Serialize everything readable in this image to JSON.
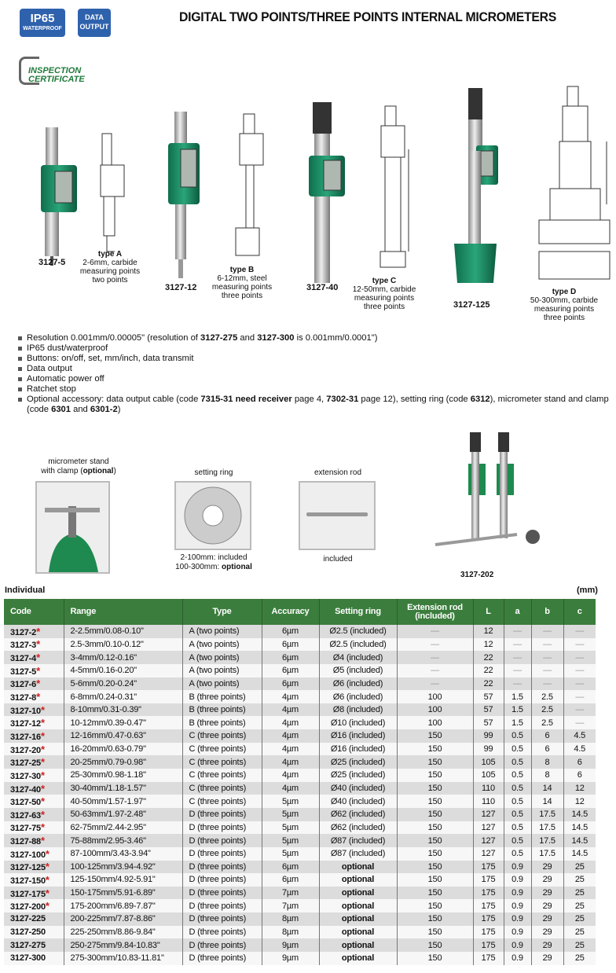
{
  "badges": {
    "ip65": "IP65",
    "ip65_sub": "WATERPROOF",
    "data1": "DATA",
    "data2": "OUTPUT"
  },
  "title": "DIGITAL TWO POINTS/THREE POINTS INTERNAL MICROMETERS",
  "certificate": {
    "line1": "INSPECTION",
    "line2": "CERTIFICATE"
  },
  "products": [
    {
      "code": "3127-5"
    },
    {
      "code": "3127-12"
    },
    {
      "code": "3127-40"
    },
    {
      "code": "3127-125"
    }
  ],
  "types": [
    {
      "name": "type A",
      "lines": [
        "2-6mm, carbide",
        "measuring points",
        "two points"
      ]
    },
    {
      "name": "type B",
      "lines": [
        "6-12mm, steel",
        "measuring points",
        "three points"
      ]
    },
    {
      "name": "type C",
      "lines": [
        "12-50mm, carbide",
        "measuring points",
        "three points"
      ]
    },
    {
      "name": "type D",
      "lines": [
        "50-300mm, carbide",
        "measuring points",
        "three points"
      ]
    }
  ],
  "features": [
    [
      {
        "t": "Resolution 0.001mm/0.00005\" (resolution of "
      },
      {
        "t": "3127-275",
        "b": true
      },
      {
        "t": " and "
      },
      {
        "t": "3127-300",
        "b": true
      },
      {
        "t": " is 0.001mm/0.0001\")"
      }
    ],
    [
      {
        "t": "IP65 dust/waterproof"
      }
    ],
    [
      {
        "t": "Buttons: on/off, set, mm/inch, data transmit"
      }
    ],
    [
      {
        "t": "Data output"
      }
    ],
    [
      {
        "t": "Automatic power off"
      }
    ],
    [
      {
        "t": "Ratchet stop"
      }
    ],
    [
      {
        "t": "Optional accessory: data output cable (code "
      },
      {
        "t": "7315-31 need receiver",
        "b": true
      },
      {
        "t": " page 4, "
      },
      {
        "t": "7302-31",
        "b": true
      },
      {
        "t": " page 12), setting ring (code "
      },
      {
        "t": "6312",
        "b": true
      },
      {
        "t": "), micrometer stand and clamp (code "
      },
      {
        "t": "6301",
        "b": true
      },
      {
        "t": " and "
      },
      {
        "t": "6301-2",
        "b": true
      },
      {
        "t": ")"
      }
    ]
  ],
  "accessories": {
    "stand": {
      "title1": "micrometer stand",
      "title2": "with clamp (",
      "title_bold": "optional",
      "title3": ")"
    },
    "ring": {
      "title": "setting ring",
      "note1": "2-100mm: included",
      "note2a": "100-300mm: ",
      "note2b": "optional"
    },
    "rod": {
      "title": "extension rod",
      "note": "included"
    },
    "set_code": "3127-202"
  },
  "table": {
    "label": "Individual",
    "unit": "(mm)",
    "headers": [
      "Code",
      "Range",
      "Type",
      "Accuracy",
      "Setting ring",
      "Extension rod (included)",
      "L",
      "a",
      "b",
      "c"
    ],
    "rows": [
      [
        "3127-2",
        true,
        "2-2.5mm/0.08-0.10\"",
        "A (two points)",
        "6µm",
        "Ø2.5 (included)",
        "—",
        "12",
        "—",
        "—",
        "—"
      ],
      [
        "3127-3",
        true,
        "2.5-3mm/0.10-0.12\"",
        "A (two points)",
        "6µm",
        "Ø2.5 (included)",
        "—",
        "12",
        "—",
        "—",
        "—"
      ],
      [
        "3127-4",
        true,
        "3-4mm/0.12-0.16\"",
        "A (two points)",
        "6µm",
        "Ø4 (included)",
        "—",
        "22",
        "—",
        "—",
        "—"
      ],
      [
        "3127-5",
        true,
        "4-5mm/0.16-0.20\"",
        "A (two points)",
        "6µm",
        "Ø5 (included)",
        "—",
        "22",
        "—",
        "—",
        "—"
      ],
      [
        "3127-6",
        true,
        "5-6mm/0.20-0.24\"",
        "A (two points)",
        "6µm",
        "Ø6 (included)",
        "—",
        "22",
        "—",
        "—",
        "—"
      ],
      [
        "3127-8",
        true,
        "6-8mm/0.24-0.31\"",
        "B (three points)",
        "4µm",
        "Ø6 (included)",
        "100",
        "57",
        "1.5",
        "2.5",
        "—"
      ],
      [
        "3127-10",
        true,
        "8-10mm/0.31-0.39\"",
        "B (three points)",
        "4µm",
        "Ø8 (included)",
        "100",
        "57",
        "1.5",
        "2.5",
        "—"
      ],
      [
        "3127-12",
        true,
        "10-12mm/0.39-0.47\"",
        "B (three points)",
        "4µm",
        "Ø10 (included)",
        "100",
        "57",
        "1.5",
        "2.5",
        "—"
      ],
      [
        "3127-16",
        true,
        "12-16mm/0.47-0.63\"",
        "C (three points)",
        "4µm",
        "Ø16 (included)",
        "150",
        "99",
        "0.5",
        "6",
        "4.5"
      ],
      [
        "3127-20",
        true,
        "16-20mm/0.63-0.79\"",
        "C (three points)",
        "4µm",
        "Ø16 (included)",
        "150",
        "99",
        "0.5",
        "6",
        "4.5"
      ],
      [
        "3127-25",
        true,
        "20-25mm/0.79-0.98\"",
        "C (three points)",
        "4µm",
        "Ø25 (included)",
        "150",
        "105",
        "0.5",
        "8",
        "6"
      ],
      [
        "3127-30",
        true,
        "25-30mm/0.98-1.18\"",
        "C (three points)",
        "4µm",
        "Ø25 (included)",
        "150",
        "105",
        "0.5",
        "8",
        "6"
      ],
      [
        "3127-40",
        true,
        "30-40mm/1.18-1.57\"",
        "C (three points)",
        "4µm",
        "Ø40 (included)",
        "150",
        "110",
        "0.5",
        "14",
        "12"
      ],
      [
        "3127-50",
        true,
        "40-50mm/1.57-1.97\"",
        "C (three points)",
        "5µm",
        "Ø40 (included)",
        "150",
        "110",
        "0.5",
        "14",
        "12"
      ],
      [
        "3127-63",
        true,
        "50-63mm/1.97-2.48\"",
        "D (three points)",
        "5µm",
        "Ø62 (included)",
        "150",
        "127",
        "0.5",
        "17.5",
        "14.5"
      ],
      [
        "3127-75",
        true,
        "62-75mm/2.44-2.95\"",
        "D (three points)",
        "5µm",
        "Ø62 (included)",
        "150",
        "127",
        "0.5",
        "17.5",
        "14.5"
      ],
      [
        "3127-88",
        true,
        "75-88mm/2.95-3.46\"",
        "D (three points)",
        "5µm",
        "Ø87 (included)",
        "150",
        "127",
        "0.5",
        "17.5",
        "14.5"
      ],
      [
        "3127-100",
        true,
        "87-100mm/3.43-3.94\"",
        "D (three points)",
        "5µm",
        "Ø87 (included)",
        "150",
        "127",
        "0.5",
        "17.5",
        "14.5"
      ],
      [
        "3127-125",
        true,
        "100-125mm/3.94-4.92\"",
        "D (three points)",
        "6µm",
        "optional",
        "150",
        "175",
        "0.9",
        "29",
        "25"
      ],
      [
        "3127-150",
        true,
        "125-150mm/4.92-5.91\"",
        "D (three points)",
        "6µm",
        "optional",
        "150",
        "175",
        "0.9",
        "29",
        "25"
      ],
      [
        "3127-175",
        true,
        "150-175mm/5.91-6.89\"",
        "D (three points)",
        "7µm",
        "optional",
        "150",
        "175",
        "0.9",
        "29",
        "25"
      ],
      [
        "3127-200",
        true,
        "175-200mm/6.89-7.87\"",
        "D (three points)",
        "7µm",
        "optional",
        "150",
        "175",
        "0.9",
        "29",
        "25"
      ],
      [
        "3127-225",
        false,
        "200-225mm/7.87-8.86\"",
        "D (three points)",
        "8µm",
        "optional",
        "150",
        "175",
        "0.9",
        "29",
        "25"
      ],
      [
        "3127-250",
        false,
        "225-250mm/8.86-9.84\"",
        "D (three points)",
        "8µm",
        "optional",
        "150",
        "175",
        "0.9",
        "29",
        "25"
      ],
      [
        "3127-275",
        false,
        "250-275mm/9.84-10.83\"",
        "D (three points)",
        "9µm",
        "optional",
        "150",
        "175",
        "0.9",
        "29",
        "25"
      ],
      [
        "3127-300",
        false,
        "275-300mm/10.83-11.81\"",
        "D (three points)",
        "9µm",
        "optional",
        "150",
        "175",
        "0.9",
        "29",
        "25"
      ]
    ]
  },
  "colors": {
    "header_green": "#3b7d3d",
    "badge_blue": "#2f62ad",
    "star_red": "#d21f1f",
    "cert_green": "#1f7a3a"
  }
}
